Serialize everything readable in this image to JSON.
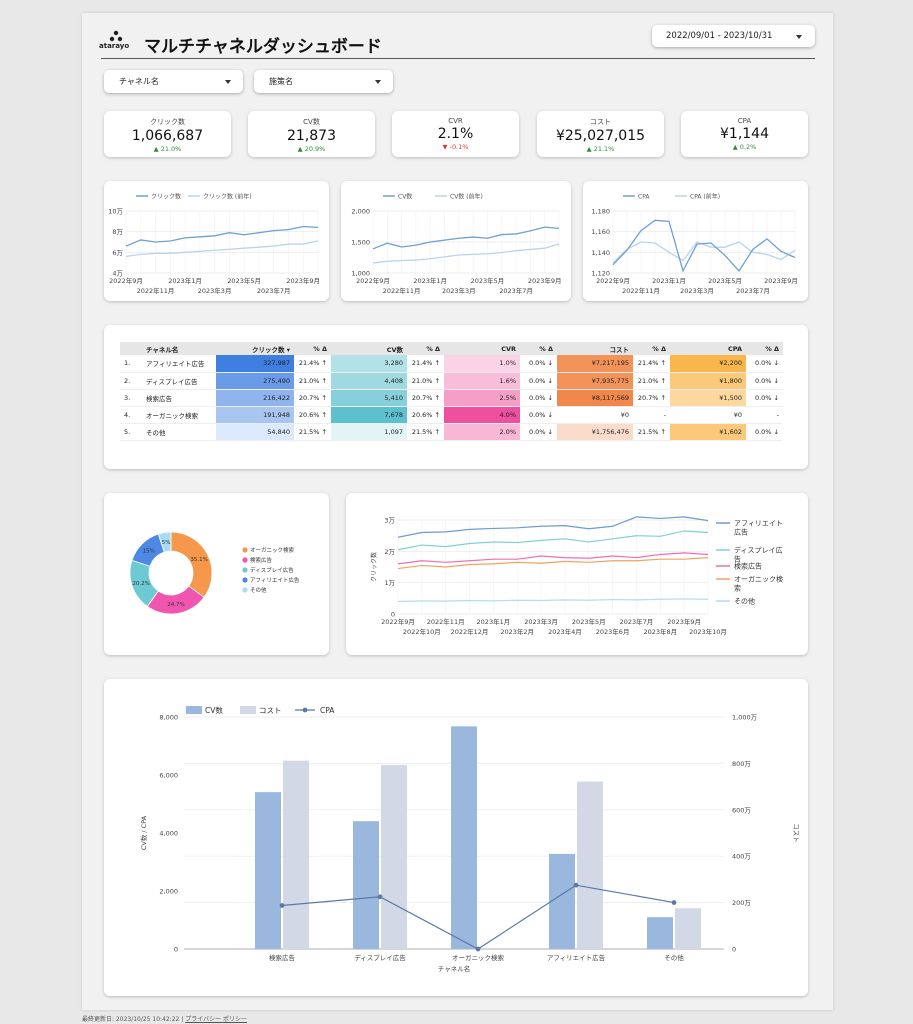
{
  "header": {
    "logo_text": "atarayo",
    "title": "マルチチャネルダッシュボード",
    "date_range": "2022/09/01 - 2023/10/31"
  },
  "filters": [
    {
      "label": "チャネル名"
    },
    {
      "label": "施策名"
    }
  ],
  "kpis": [
    {
      "label": "クリック数",
      "value": "1,066,687",
      "delta": "21.0%",
      "trend": "up"
    },
    {
      "label": "CV数",
      "value": "21,873",
      "delta": "20.9%",
      "trend": "up"
    },
    {
      "label": "CVR",
      "value": "2.1%",
      "delta": "-0.1%",
      "trend": "down"
    },
    {
      "label": "コスト",
      "value": "¥25,027,015",
      "delta": "21.1%",
      "trend": "up"
    },
    {
      "label": "CPA",
      "value": "¥1,144",
      "delta": "0.2%",
      "trend": "up"
    }
  ],
  "colors": {
    "line_main": "#6e9fd8",
    "line_prev": "#b8d3f0",
    "bar_cv": "#9ab8de",
    "bar_cost": "#d3d8e6",
    "cpa_line": "#5a79a8"
  },
  "chart_data": [
    {
      "type": "line",
      "series": [
        {
          "name": "クリック数",
          "values": [
            6.6,
            7.2,
            7.0,
            7.1,
            7.4,
            7.5,
            7.6,
            7.9,
            7.7,
            7.9,
            8.1,
            8.2,
            8.5,
            8.4
          ]
        },
        {
          "name": "クリック数 (前年)",
          "values": [
            5.6,
            5.8,
            5.9,
            5.9,
            6.0,
            6.1,
            6.2,
            6.3,
            6.4,
            6.5,
            6.6,
            6.8,
            6.8,
            7.1
          ]
        }
      ],
      "y_ticks": [
        "10万",
        "8万",
        "6万",
        "4万"
      ],
      "ylim": [
        4,
        10
      ],
      "x_ticks_top": [
        "2022年9月",
        "2023年1月",
        "2023年5月",
        "2023年9月"
      ],
      "x_ticks_bottom": [
        "2022年11月",
        "2023年3月",
        "2023年7月"
      ]
    },
    {
      "type": "line",
      "series": [
        {
          "name": "CV数",
          "values": [
            1390,
            1480,
            1420,
            1450,
            1500,
            1530,
            1560,
            1580,
            1560,
            1620,
            1630,
            1680,
            1740,
            1720
          ]
        },
        {
          "name": "CV数 (前年)",
          "values": [
            1160,
            1190,
            1200,
            1210,
            1230,
            1260,
            1290,
            1300,
            1310,
            1330,
            1360,
            1380,
            1400,
            1470
          ]
        }
      ],
      "y_ticks": [
        "2,000",
        "1,500",
        "1,000"
      ],
      "ylim": [
        1000,
        2000
      ],
      "x_ticks_top": [
        "2022年9月",
        "2023年1月",
        "2023年5月",
        "2023年9月"
      ],
      "x_ticks_bottom": [
        "2022年11月",
        "2023年3月",
        "2023年7月"
      ]
    },
    {
      "type": "line",
      "series": [
        {
          "name": "CPA",
          "values": [
            1128,
            1142,
            1161,
            1171,
            1170,
            1122,
            1148,
            1149,
            1137,
            1122,
            1143,
            1153,
            1141,
            1135
          ]
        },
        {
          "name": "CPA (前年)",
          "values": [
            1130,
            1143,
            1150,
            1149,
            1140,
            1132,
            1150,
            1145,
            1145,
            1150,
            1140,
            1138,
            1133,
            1142
          ]
        }
      ],
      "y_ticks": [
        "1,180",
        "1,160",
        "1,140",
        "1,120"
      ],
      "ylim": [
        1120,
        1180
      ],
      "x_ticks_top": [
        "2022年9月",
        "2023年1月",
        "2023年5月",
        "2023年9月"
      ],
      "x_ticks_bottom": [
        "2022年11月",
        "2023年3月",
        "2023年7月"
      ]
    },
    {
      "type": "table",
      "headers": [
        "チャネル名",
        "クリック数 ▾",
        "% Δ",
        "CV数",
        "% Δ",
        "CVR",
        "% Δ",
        "コスト",
        "% Δ",
        "CPA",
        "% Δ"
      ],
      "rows": [
        {
          "no": "1.",
          "name": "アフィリエイト広告",
          "clicks": "327,987",
          "clicks_d": "21.4% ↑",
          "cv": "3,280",
          "cv_d": "21.4% ↑",
          "cvr": "1.0%",
          "cvr_d": "0.0% ↓",
          "cost": "¥7,217,195",
          "cost_d": "21.4% ↑",
          "cpa": "¥2,200",
          "cpa_d": "0.0% ↓"
        },
        {
          "no": "2.",
          "name": "ディスプレイ広告",
          "clicks": "275,490",
          "clicks_d": "21.0% ↑",
          "cv": "4,408",
          "cv_d": "21.0% ↑",
          "cvr": "1.6%",
          "cvr_d": "0.0% ↓",
          "cost": "¥7,935,775",
          "cost_d": "21.0% ↑",
          "cpa": "¥1,800",
          "cpa_d": "0.0% ↓"
        },
        {
          "no": "3.",
          "name": "検索広告",
          "clicks": "216,422",
          "clicks_d": "20.7% ↑",
          "cv": "5,410",
          "cv_d": "20.7% ↑",
          "cvr": "2.5%",
          "cvr_d": "0.0% ↓",
          "cost": "¥8,117,569",
          "cost_d": "20.7% ↑",
          "cpa": "¥1,500",
          "cpa_d": "0.0% ↓"
        },
        {
          "no": "4.",
          "name": "オーガニック検索",
          "clicks": "191,948",
          "clicks_d": "20.6% ↑",
          "cv": "7,678",
          "cv_d": "20.6% ↑",
          "cvr": "4.0%",
          "cvr_d": "0.0% ↓",
          "cost": "¥0",
          "cost_d": "-",
          "cpa": "¥0",
          "cpa_d": "-"
        },
        {
          "no": "5.",
          "name": "その他",
          "clicks": "54,840",
          "clicks_d": "21.5% ↑",
          "cv": "1,097",
          "cv_d": "21.5% ↑",
          "cvr": "2.0%",
          "cvr_d": "0.0% ↓",
          "cost": "¥1,756,476",
          "cost_d": "21.5% ↑",
          "cpa": "¥1,602",
          "cpa_d": "0.0% ↓"
        }
      ],
      "heat": {
        "clicks": [
          "#3f7fe0",
          "#6a9be8",
          "#8fb4ee",
          "#a9c6f2",
          "#dce8fb"
        ],
        "cv": [
          "#b2e2e8",
          "#9fd9e1",
          "#87cfdb",
          "#5cc0cf",
          "#e2f4f6"
        ],
        "cvr": [
          "#fbd3e6",
          "#f9bdd9",
          "#f59fc8",
          "#ee4f9e",
          "#f8b7d5"
        ],
        "cost": [
          "#f3935a",
          "#f3935a",
          "#f1874b",
          "#ffffff",
          "#fbdccb"
        ],
        "cpa": [
          "#f9b64b",
          "#fbc979",
          "#fcd89e",
          "#ffffff",
          "#fbc979"
        ]
      }
    },
    {
      "type": "pie",
      "slices": [
        {
          "name": "オーガニック検索",
          "value": 35.1,
          "label": "35.1%",
          "color": "#f6984b"
        },
        {
          "name": "検索広告",
          "value": 24.7,
          "label": "24.7%",
          "color": "#f055b0"
        },
        {
          "name": "ディスプレイ広告",
          "value": 20.2,
          "label": "20.2%",
          "color": "#6dcad2"
        },
        {
          "name": "アフィリエイト広告",
          "value": 15.0,
          "label": "15%",
          "color": "#4d88e6"
        },
        {
          "name": "その他",
          "value": 5.0,
          "label": "5%",
          "color": "#a7dcf3"
        }
      ],
      "legend_position": "right"
    },
    {
      "type": "line",
      "ylabel": "クリック数",
      "y_ticks": [
        "3万",
        "2万",
        "1万",
        "0"
      ],
      "ylim": [
        0,
        30000
      ],
      "x_ticks_top": [
        "2022年9月",
        "2022年11月",
        "2023年1月",
        "2023年3月",
        "2023年5月",
        "2023年7月",
        "2023年9月"
      ],
      "x_ticks_bottom": [
        "2022年10月",
        "2022年12月",
        "2023年2月",
        "2023年4月",
        "2023年6月",
        "2023年8月",
        "2023年10月"
      ],
      "series": [
        {
          "name": "アフィリエイト広告",
          "color": "#6c9bd6",
          "values": [
            24500,
            26000,
            26200,
            27000,
            27300,
            27500,
            28000,
            28200,
            27200,
            28000,
            31000,
            30500,
            31000,
            29800
          ]
        },
        {
          "name": "ディスプレイ広告",
          "color": "#7fcfd4",
          "values": [
            20500,
            22000,
            21500,
            22500,
            23000,
            22800,
            23500,
            24000,
            23000,
            24000,
            25000,
            24800,
            26500,
            26000
          ]
        },
        {
          "name": "検索広告",
          "color": "#ef6fb1",
          "values": [
            16000,
            17000,
            16500,
            17000,
            17500,
            17500,
            18500,
            18000,
            17800,
            18500,
            18000,
            19000,
            19500,
            19000
          ]
        },
        {
          "name": "オーガニック検索",
          "color": "#f2a162",
          "values": [
            14500,
            15500,
            15000,
            15800,
            16000,
            16500,
            16200,
            16800,
            16500,
            17000,
            17000,
            17500,
            17500,
            18000
          ]
        },
        {
          "name": "その他",
          "color": "#b3dcef",
          "values": [
            4000,
            4200,
            4100,
            4300,
            4200,
            4400,
            4300,
            4500,
            4400,
            4600,
            4500,
            4700,
            4800,
            4700
          ]
        }
      ],
      "legend_position": "right"
    },
    {
      "type": "bar",
      "legend": [
        "CV数",
        "コスト",
        "CPA"
      ],
      "categories": [
        "検索広告",
        "ディスプレイ広告",
        "オーガニック検索",
        "アフィリエイト広告",
        "その他"
      ],
      "series": [
        {
          "name": "CV数",
          "values": [
            5410,
            4408,
            7678,
            3280,
            1097
          ]
        },
        {
          "name": "コスト",
          "values": [
            8117569,
            7935775,
            0,
            7217195,
            1756476
          ]
        },
        {
          "name": "CPA",
          "values": [
            1500,
            1800,
            0,
            2200,
            1602
          ]
        }
      ],
      "xlabel": "チャネル名",
      "ylabel": "CV数 / CPA",
      "y2label": "コスト",
      "ylim": [
        0,
        8000
      ],
      "y2lim": [
        0,
        10000000
      ],
      "y_ticks": [
        "8,000",
        "6,000",
        "4,000",
        "2,000",
        "0"
      ],
      "y2_ticks": [
        "1,000万",
        "800万",
        "600万",
        "400万",
        "200万",
        "0"
      ]
    }
  ],
  "footer": {
    "updated": "最終更新日: 2023/10/25 10:42:22",
    "separator": "|",
    "privacy": "プライバシー ポリシー"
  }
}
